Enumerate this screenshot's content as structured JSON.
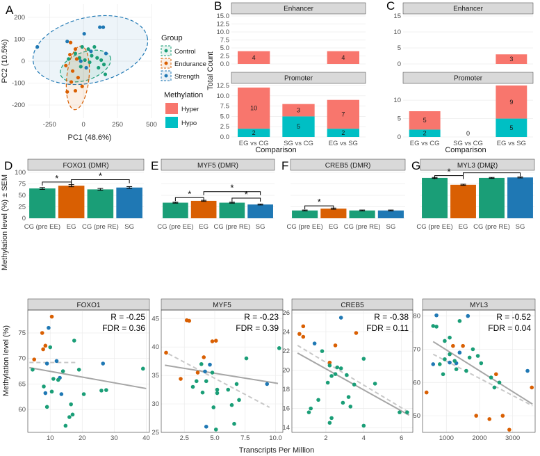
{
  "colors": {
    "control": "#1a9e77",
    "endurance": "#d95f02",
    "strength": "#1f78b4",
    "hyper": "#f8766d",
    "hypo": "#00bfc4",
    "se": "#000000",
    "trend": "#a6a6a6"
  },
  "panels": {
    "a": "A",
    "b": "B",
    "c": "C",
    "d": "D",
    "e": "E",
    "f": "F",
    "g": "G"
  },
  "legend": {
    "group_title": "Group",
    "group_items": [
      "Control",
      "Endurance",
      "Strength"
    ],
    "meth_title": "Methylation",
    "meth_items": [
      "Hyper",
      "Hypo"
    ]
  },
  "labels": {
    "bar_y": "Methylation level (%) ± SEM",
    "scatter_y": "Methylation level (%)",
    "scatter_x": "Transcripts Per Million"
  },
  "chart_data": [
    {
      "id": "pca",
      "type": "scatter",
      "xlabel": "PC1 (48.6%)",
      "ylabel": "PC2 (10.5%)",
      "xlim": [
        -410,
        500
      ],
      "ylim": [
        -260,
        260
      ],
      "xticks": [
        -250,
        0,
        250,
        500
      ],
      "yticks": [
        -200,
        -100,
        0,
        100,
        200
      ],
      "groups": [
        "Control",
        "Endurance",
        "Strength"
      ],
      "points": [
        {
          "x": -10,
          "y": 65,
          "g": 0
        },
        {
          "x": 35,
          "y": 55,
          "g": 0
        },
        {
          "x": 80,
          "y": 65,
          "g": 0
        },
        {
          "x": 60,
          "y": 25,
          "g": 0
        },
        {
          "x": 100,
          "y": 15,
          "g": 0
        },
        {
          "x": 130,
          "y": 5,
          "g": 0
        },
        {
          "x": 150,
          "y": -15,
          "g": 0
        },
        {
          "x": 110,
          "y": -30,
          "g": 0
        },
        {
          "x": 160,
          "y": -60,
          "g": 0
        },
        {
          "x": -60,
          "y": 35,
          "g": 0
        },
        {
          "x": -30,
          "y": 15,
          "g": 0
        },
        {
          "x": 10,
          "y": 5,
          "g": 0
        },
        {
          "x": 45,
          "y": -5,
          "g": 0
        },
        {
          "x": -20,
          "y": -25,
          "g": 0
        },
        {
          "x": -110,
          "y": 10,
          "g": 0
        },
        {
          "x": -95,
          "y": 85,
          "g": 1
        },
        {
          "x": -60,
          "y": 55,
          "g": 1
        },
        {
          "x": -100,
          "y": 30,
          "g": 1
        },
        {
          "x": -50,
          "y": 10,
          "g": 1
        },
        {
          "x": -130,
          "y": -20,
          "g": 1
        },
        {
          "x": -80,
          "y": -45,
          "g": 1
        },
        {
          "x": -40,
          "y": -75,
          "g": 1
        },
        {
          "x": -90,
          "y": -95,
          "g": 1
        },
        {
          "x": -60,
          "y": -135,
          "g": 1
        },
        {
          "x": -10,
          "y": -115,
          "g": 1
        },
        {
          "x": -120,
          "y": -140,
          "g": 1
        },
        {
          "x": 120,
          "y": 155,
          "g": 2
        },
        {
          "x": 145,
          "y": 155,
          "g": 2
        },
        {
          "x": 5,
          "y": 125,
          "g": 2
        },
        {
          "x": -120,
          "y": 90,
          "g": 2
        },
        {
          "x": -340,
          "y": 65,
          "g": 2
        },
        {
          "x": 55,
          "y": 45,
          "g": 2
        },
        {
          "x": 165,
          "y": 35,
          "g": 2
        },
        {
          "x": -20,
          "y": 0,
          "g": 2
        },
        {
          "x": 20,
          "y": -30,
          "g": 2
        }
      ]
    },
    {
      "id": "b",
      "type": "bar",
      "title": "",
      "xlabel": "Comparison",
      "ylabel": "Total Count",
      "categories": [
        "EG vs CG",
        "SG vs CG",
        "EG vs SG"
      ],
      "facets": [
        {
          "name": "Enhancer",
          "ylim": [
            0,
            15
          ],
          "yticks": [
            0.0,
            2.5,
            5.0,
            7.5,
            10.0,
            12.5,
            15.0
          ],
          "series": [
            {
              "name": "Hyper",
              "values": [
                4,
                0,
                4
              ]
            },
            {
              "name": "Hypo",
              "values": [
                0,
                0,
                0
              ]
            }
          ]
        },
        {
          "name": "Promoter",
          "ylim": [
            0,
            12.5
          ],
          "yticks": [
            0.0,
            2.5,
            5.0,
            7.5,
            10.0,
            12.5
          ],
          "series": [
            {
              "name": "Hyper",
              "values": [
                10,
                3,
                7
              ]
            },
            {
              "name": "Hypo",
              "values": [
                2,
                5,
                2
              ]
            }
          ]
        }
      ]
    },
    {
      "id": "c",
      "type": "bar",
      "xlabel": "Comparison",
      "categories": [
        "EG vs CG",
        "SG vs CG",
        "EG vs SG"
      ],
      "facets": [
        {
          "name": "Enhancer",
          "ylim": [
            0,
            15
          ],
          "yticks": [
            0,
            5,
            10,
            15
          ],
          "series": [
            {
              "name": "Hyper",
              "values": [
                0,
                0,
                3
              ]
            },
            {
              "name": "Hypo",
              "values": [
                0,
                0,
                0
              ]
            }
          ]
        },
        {
          "name": "Promoter",
          "ylim": [
            0,
            14
          ],
          "yticks": [
            0,
            5,
            10
          ],
          "series": [
            {
              "name": "Hyper",
              "values": [
                5,
                0,
                9
              ]
            },
            {
              "name": "Hypo",
              "values": [
                2,
                0,
                5
              ]
            }
          ],
          "zero_label": "0"
        }
      ]
    },
    {
      "id": "d",
      "type": "bar",
      "title": "FOXO1 (DMR)",
      "categories": [
        "CG (pre EE)",
        "EG",
        "CG (pre RE)",
        "SG"
      ],
      "values": [
        65,
        71,
        63,
        67
      ],
      "errors": [
        2,
        2.3,
        2,
        2
      ],
      "ylim": [
        0,
        100
      ],
      "yticks": [
        0,
        25,
        50,
        75,
        100
      ],
      "brackets": [
        {
          "from": 0,
          "to": 1,
          "y": 79,
          "label": "*"
        },
        {
          "from": 1,
          "to": 3,
          "y": 84,
          "label": "*"
        }
      ]
    },
    {
      "id": "e",
      "type": "bar",
      "title": "MYF5 (DMR)",
      "categories": [
        "CG (pre EE)",
        "EG",
        "CG (pre RE)",
        "SG"
      ],
      "values": [
        34,
        38,
        34,
        30
      ],
      "errors": [
        1,
        1.2,
        1,
        1
      ],
      "ylim": [
        0,
        100
      ],
      "brackets": [
        {
          "from": 0,
          "to": 1,
          "y": 45,
          "label": "*"
        },
        {
          "from": 1,
          "to": 3,
          "y": 58,
          "label": "*"
        },
        {
          "from": 2,
          "to": 3,
          "y": 44,
          "label": "*"
        }
      ]
    },
    {
      "id": "f",
      "type": "bar",
      "title": "CREB5 (DMR)",
      "categories": [
        "CG (pre EE)",
        "EG",
        "CG (pre RE)",
        "SG"
      ],
      "values": [
        17,
        21,
        17,
        17
      ],
      "errors": [
        1,
        1.3,
        1,
        1
      ],
      "ylim": [
        0,
        100
      ],
      "brackets": [
        {
          "from": 0,
          "to": 1,
          "y": 27,
          "label": "*"
        }
      ]
    },
    {
      "id": "g",
      "type": "bar",
      "title": "MYL3 (DMR)",
      "categories": [
        "CG (pre EE)",
        "EG",
        "CG (pre RE)",
        "SG"
      ],
      "values": [
        88,
        73,
        88,
        89
      ],
      "errors": [
        1,
        1.2,
        1,
        1
      ],
      "ylim": [
        0,
        100
      ],
      "brackets": [
        {
          "from": 0,
          "to": 1,
          "y": 93,
          "label": "*"
        },
        {
          "from": 1,
          "to": 3,
          "y": 99,
          "label": "*"
        }
      ]
    },
    {
      "id": "s1",
      "type": "scatter",
      "title": "FOXO1",
      "stats": "R = -0.25\nFDR = 0.36",
      "xlim": [
        3,
        41
      ],
      "ylim": [
        55.5,
        79.5
      ],
      "xticks": [
        10,
        20,
        30,
        40
      ],
      "yticks": [
        60,
        65,
        70,
        75
      ],
      "trend": [
        [
          3.5,
          68.2
        ],
        [
          40,
          64.1
        ]
      ],
      "dashed": [
        [
          3.5,
          69.2
        ],
        [
          18,
          69.2
        ]
      ],
      "points": [
        [
          10.5,
          78.2,
          1
        ],
        [
          9.5,
          76.0,
          2
        ],
        [
          7.5,
          75.0,
          1
        ],
        [
          8.5,
          72.5,
          1
        ],
        [
          10.0,
          72.2,
          0
        ],
        [
          17.5,
          73.5,
          0
        ],
        [
          7.8,
          71.8,
          1
        ],
        [
          5.0,
          69.8,
          1
        ],
        [
          9.0,
          69.0,
          2
        ],
        [
          12.0,
          69.5,
          2
        ],
        [
          26.5,
          69.0,
          2
        ],
        [
          14.0,
          67.5,
          0
        ],
        [
          19.0,
          67.8,
          0
        ],
        [
          4.5,
          67.8,
          0
        ],
        [
          13.0,
          66.2,
          2
        ],
        [
          11.0,
          66.0,
          0
        ],
        [
          12.5,
          65.8,
          0
        ],
        [
          8.0,
          64.5,
          0
        ],
        [
          10.5,
          63.5,
          0
        ],
        [
          13.5,
          63.0,
          2
        ],
        [
          8.5,
          63.2,
          2
        ],
        [
          20.5,
          63.0,
          0
        ],
        [
          26.0,
          63.7,
          0
        ],
        [
          27.5,
          63.8,
          0
        ],
        [
          9.0,
          60.5,
          0
        ],
        [
          16.5,
          61.0,
          0
        ],
        [
          17.0,
          59.0,
          0
        ],
        [
          16.0,
          58.5,
          0
        ],
        [
          14.8,
          56.8,
          0
        ],
        [
          39.0,
          68.0,
          0
        ]
      ]
    },
    {
      "id": "s2",
      "type": "scatter",
      "title": "MYF5",
      "stats": "R = -0.23\nFDR = 0.39",
      "xlim": [
        0.6,
        10.6
      ],
      "ylim": [
        25,
        46.5
      ],
      "xticks": [
        2.5,
        5.0,
        7.5,
        10.0
      ],
      "yticks": [
        25,
        30,
        35,
        40,
        45
      ],
      "trend": [
        [
          0.9,
          36.8
        ],
        [
          10.2,
          33.6
        ]
      ],
      "dashed": [
        [
          1.2,
          38.8
        ],
        [
          9.5,
          29.4
        ]
      ],
      "points": [
        [
          2.7,
          44.7,
          1
        ],
        [
          2.9,
          44.6,
          1
        ],
        [
          1.0,
          39.0,
          1
        ],
        [
          4.8,
          41.0,
          1
        ],
        [
          5.1,
          41.1,
          1
        ],
        [
          7.6,
          38.0,
          0
        ],
        [
          10.3,
          39.8,
          0
        ],
        [
          4.1,
          38.2,
          1
        ],
        [
          3.6,
          35.5,
          1
        ],
        [
          4.2,
          35.7,
          2
        ],
        [
          4.8,
          35.5,
          0
        ],
        [
          3.9,
          37.0,
          0
        ],
        [
          4.6,
          36.9,
          2
        ],
        [
          2.2,
          34.4,
          1
        ],
        [
          3.5,
          34.0,
          0
        ],
        [
          4.3,
          34.0,
          0
        ],
        [
          5.2,
          32.5,
          0
        ],
        [
          6.1,
          32.5,
          0
        ],
        [
          4.0,
          32.0,
          0
        ],
        [
          5.2,
          31.9,
          0
        ],
        [
          6.8,
          33.5,
          0
        ],
        [
          3.2,
          33.0,
          0
        ],
        [
          4.9,
          29.4,
          0
        ],
        [
          6.4,
          29.8,
          0
        ],
        [
          7.0,
          30.7,
          0
        ],
        [
          9.3,
          33.5,
          2
        ],
        [
          4.3,
          26.0,
          2
        ],
        [
          5.1,
          25.5,
          0
        ],
        [
          6.6,
          26.5,
          0
        ]
      ]
    },
    {
      "id": "s3",
      "type": "scatter",
      "title": "CREB5",
      "stats": "R = -0.38\nFDR = 0.11",
      "xlim": [
        0.2,
        6.6
      ],
      "ylim": [
        13.5,
        26.3
      ],
      "xticks": [
        2,
        4,
        6
      ],
      "yticks": [
        14,
        16,
        18,
        20,
        22,
        24,
        26
      ],
      "trend": [
        [
          0.5,
          21.8
        ],
        [
          6.4,
          15.3
        ]
      ],
      "dashed": [
        [
          0.5,
          22.6
        ],
        [
          6.4,
          15.6
        ]
      ],
      "points": [
        [
          2.8,
          25.5,
          2
        ],
        [
          0.8,
          24.6,
          1
        ],
        [
          0.6,
          23.8,
          1
        ],
        [
          0.8,
          23.5,
          1
        ],
        [
          3.6,
          23.9,
          1
        ],
        [
          1.4,
          22.8,
          2
        ],
        [
          1.8,
          22.0,
          0
        ],
        [
          2.5,
          22.6,
          1
        ],
        [
          2.2,
          20.8,
          1
        ],
        [
          2.6,
          20.3,
          0
        ],
        [
          2.8,
          20.2,
          0
        ],
        [
          2.2,
          20.5,
          0
        ],
        [
          4.0,
          21.2,
          0
        ],
        [
          2.3,
          19.4,
          0
        ],
        [
          2.5,
          19.6,
          0
        ],
        [
          3.1,
          19.5,
          0
        ],
        [
          2.1,
          18.7,
          0
        ],
        [
          3.5,
          18.5,
          0
        ],
        [
          4.6,
          18.6,
          0
        ],
        [
          1.6,
          16.9,
          0
        ],
        [
          2.9,
          16.6,
          0
        ],
        [
          3.2,
          17.2,
          0
        ],
        [
          1.2,
          16.0,
          0
        ],
        [
          1.1,
          15.6,
          0
        ],
        [
          2.3,
          15.0,
          0
        ],
        [
          2.2,
          14.5,
          0
        ],
        [
          4.0,
          14.2,
          0
        ],
        [
          5.9,
          15.6,
          0
        ],
        [
          6.3,
          15.6,
          0
        ],
        [
          3.3,
          16.2,
          0
        ]
      ]
    },
    {
      "id": "s4",
      "type": "scatter",
      "title": "MYL3",
      "stats": "R = -0.52\nFDR = 0.04",
      "xlim": [
        280,
        3680
      ],
      "ylim": [
        45,
        81.8
      ],
      "xticks": [
        1000,
        2000,
        3000
      ],
      "yticks": [
        50,
        60,
        70,
        80
      ],
      "trend": [
        [
          600,
          72.3
        ],
        [
          3600,
          53.5
        ]
      ],
      "dashed": [
        [
          600,
          68.5
        ],
        [
          3600,
          53.0
        ]
      ],
      "points": [
        [
          700,
          80.2,
          2
        ],
        [
          1650,
          80.0,
          2
        ],
        [
          1400,
          78.5,
          0
        ],
        [
          600,
          77.0,
          0
        ],
        [
          700,
          76.8,
          0
        ],
        [
          950,
          72.5,
          0
        ],
        [
          1100,
          73.5,
          0
        ],
        [
          1200,
          71.0,
          1
        ],
        [
          1500,
          71.0,
          1
        ],
        [
          1400,
          69.0,
          2
        ],
        [
          1100,
          68.5,
          0
        ],
        [
          1800,
          70.0,
          0
        ],
        [
          950,
          67.0,
          0
        ],
        [
          1700,
          67.5,
          0
        ],
        [
          1950,
          68.0,
          0
        ],
        [
          600,
          65.5,
          2
        ],
        [
          1100,
          66.0,
          2
        ],
        [
          1300,
          65.8,
          2
        ],
        [
          1250,
          66.5,
          0
        ],
        [
          800,
          65.5,
          0
        ],
        [
          2050,
          65.8,
          0
        ],
        [
          1600,
          63.5,
          0
        ],
        [
          900,
          62.5,
          0
        ],
        [
          1300,
          64.0,
          0
        ],
        [
          2350,
          61.5,
          0
        ],
        [
          2500,
          62.5,
          1
        ],
        [
          2600,
          60.0,
          0
        ],
        [
          2450,
          58.5,
          0
        ],
        [
          400,
          57.0,
          1
        ],
        [
          3450,
          63.5,
          2
        ],
        [
          3580,
          58.5,
          1
        ],
        [
          1900,
          50.0,
          1
        ],
        [
          2300,
          49.0,
          1
        ],
        [
          2700,
          50.0,
          1
        ],
        [
          2900,
          45.8,
          1
        ]
      ]
    }
  ]
}
